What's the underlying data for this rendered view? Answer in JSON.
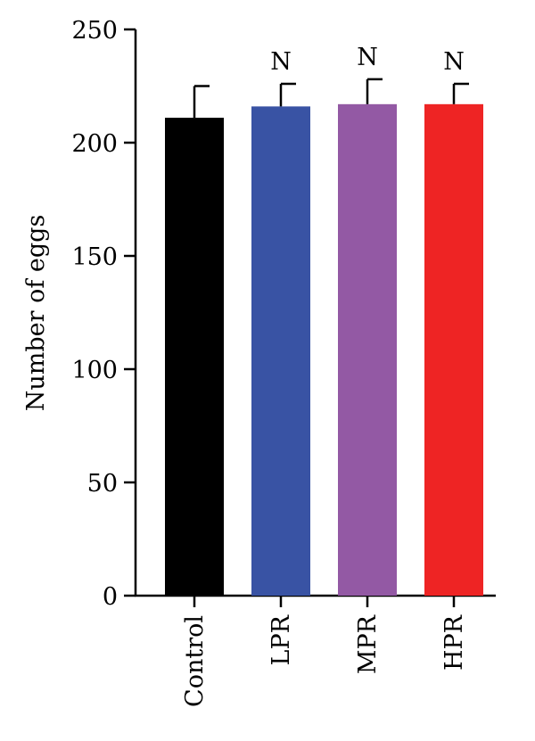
{
  "chart_data": {
    "type": "bar",
    "title": "",
    "xlabel": "",
    "ylabel": "Number of eggs",
    "ylim": [
      0,
      250
    ],
    "yticks": [
      0,
      50,
      100,
      150,
      200,
      250
    ],
    "grid": false,
    "categories": [
      "Control",
      "LPR",
      "MPR",
      "HPR"
    ],
    "values": [
      211,
      216,
      217,
      217
    ],
    "errors": [
      14,
      10,
      11,
      9
    ],
    "bar_colors": [
      "#000000",
      "#3953a4",
      "#9359a4",
      "#ee2424"
    ],
    "annotations": [
      "",
      "N",
      "N",
      "N"
    ]
  }
}
